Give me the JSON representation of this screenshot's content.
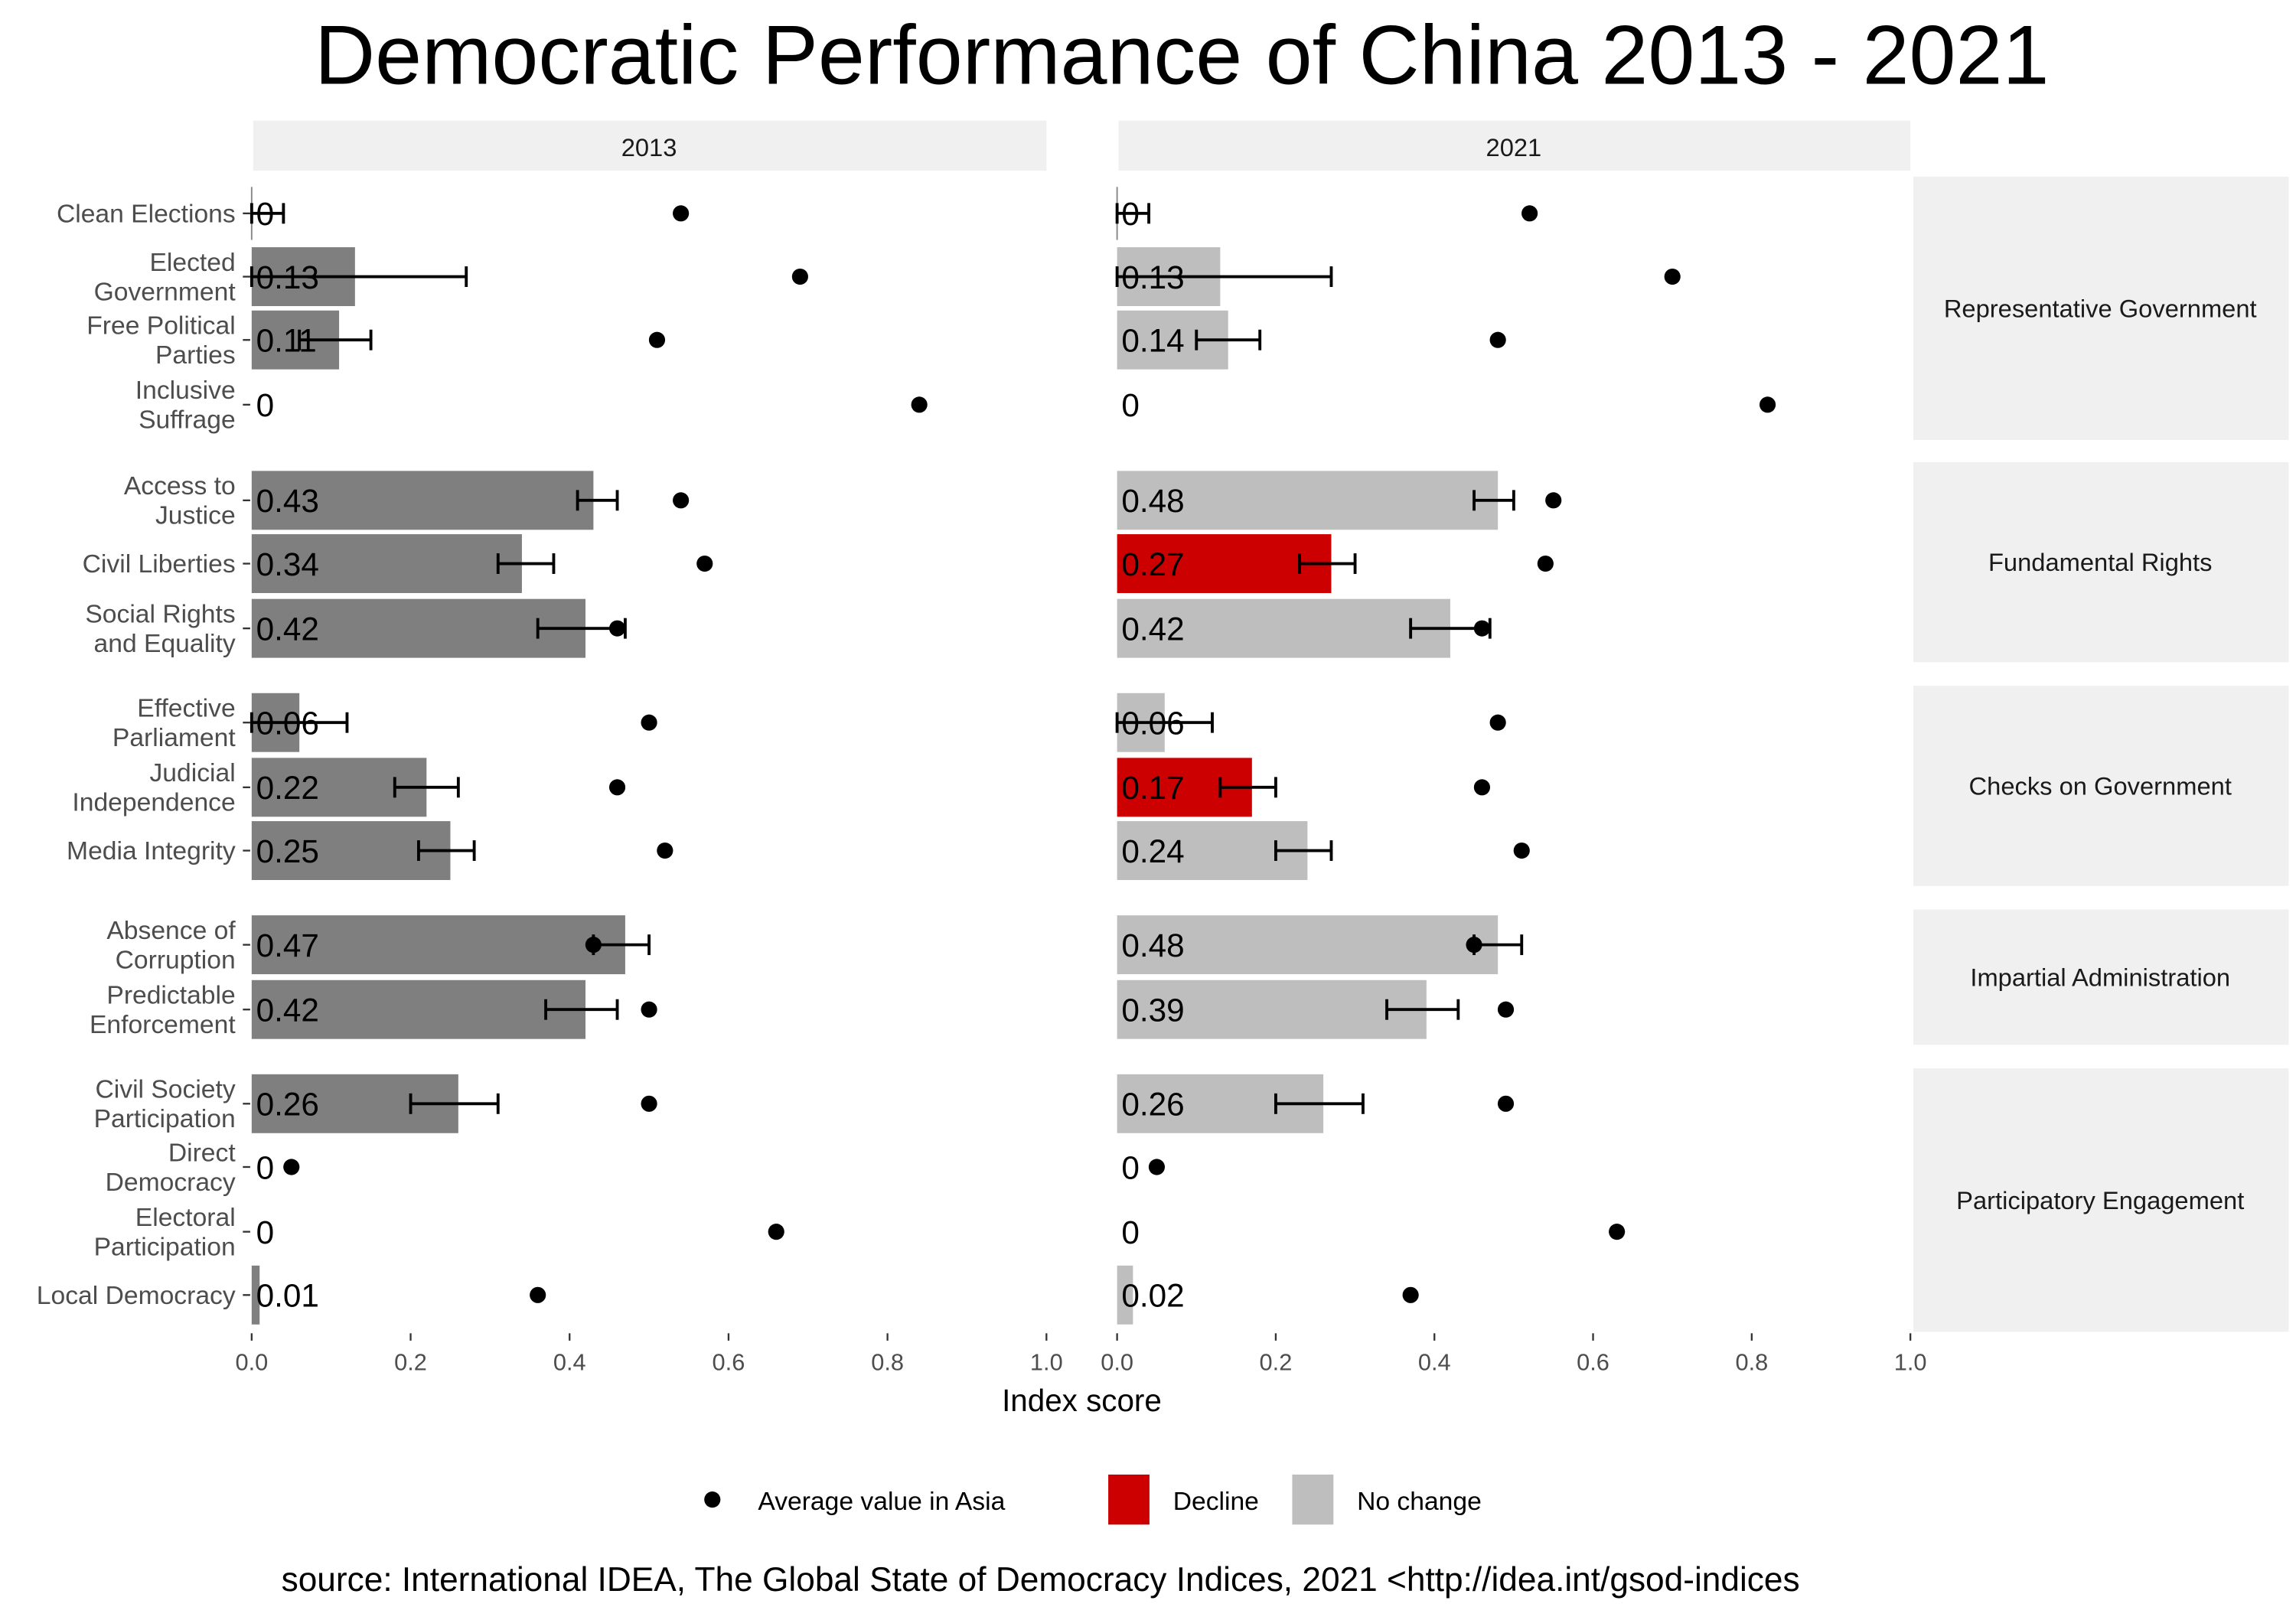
{
  "chart_data": {
    "type": "bar",
    "title": "Democratic Performance of China 2013 - 2021",
    "xlabel": "Index score",
    "ylabel": "",
    "xlim": [
      0,
      1.0
    ],
    "xticks": [
      "0.0",
      "0.2",
      "0.4",
      "0.6",
      "0.8",
      "1.0"
    ],
    "grid": false,
    "source": "source: International IDEA, The Global State of Democracy Indices, 2021 <http://idea.int/gsod-indices",
    "legend": {
      "placement": "bottom",
      "entries": [
        {
          "label": "Average value in Asia",
          "kind": "point",
          "color": "#000000"
        },
        {
          "label": "Decline",
          "kind": "fill",
          "color": "#cc0000"
        },
        {
          "label": "No change",
          "kind": "fill",
          "color": "#bebebe"
        }
      ]
    },
    "groups": [
      {
        "name": "Representative Government",
        "categories": [
          0,
          1,
          2,
          3
        ]
      },
      {
        "name": "Fundamental Rights",
        "categories": [
          4,
          5,
          6
        ]
      },
      {
        "name": "Checks on Government",
        "categories": [
          7,
          8,
          9
        ]
      },
      {
        "name": "Impartial Administration",
        "categories": [
          10,
          11
        ]
      },
      {
        "name": "Participatory Engagement",
        "categories": [
          12,
          13,
          14,
          15
        ]
      }
    ],
    "categories": [
      [
        "Clean Elections"
      ],
      [
        "Elected",
        "Government"
      ],
      [
        "Free Political",
        "Parties"
      ],
      [
        "Inclusive",
        "Suffrage"
      ],
      [
        "Access to",
        "Justice"
      ],
      [
        "Civil Liberties"
      ],
      [
        "Social Rights",
        "and Equality"
      ],
      [
        "Effective",
        "Parliament"
      ],
      [
        "Judicial",
        "Independence"
      ],
      [
        "Media Integrity"
      ],
      [
        "Absence of",
        "Corruption"
      ],
      [
        "Predictable",
        "Enforcement"
      ],
      [
        "Civil Society",
        "Participation"
      ],
      [
        "Direct",
        "Democracy"
      ],
      [
        "Electoral",
        "Participation"
      ],
      [
        "Local Democracy"
      ]
    ],
    "panels": [
      {
        "year": "2013",
        "bar_color": "#7f7f7f",
        "values": [
          0,
          0.13,
          0.11,
          0,
          0.43,
          0.34,
          0.42,
          0.06,
          0.22,
          0.25,
          0.47,
          0.42,
          0.26,
          0,
          0,
          0.01
        ],
        "labels": [
          "0",
          "0.13",
          "0.11",
          "0",
          "0.43",
          "0.34",
          "0.42",
          "0.06",
          "0.22",
          "0.25",
          "0.47",
          "0.42",
          "0.26",
          "0",
          "0",
          "0.01"
        ],
        "status": [
          "none",
          "none",
          "none",
          "none",
          "none",
          "none",
          "none",
          "none",
          "none",
          "none",
          "none",
          "none",
          "none",
          "none",
          "none",
          "none"
        ],
        "error_low": [
          0,
          0,
          0.06,
          null,
          0.41,
          0.31,
          0.36,
          0,
          0.18,
          0.21,
          0.43,
          0.37,
          0.2,
          null,
          null,
          null
        ],
        "error_high": [
          0.04,
          0.27,
          0.15,
          null,
          0.46,
          0.38,
          0.47,
          0.12,
          0.26,
          0.28,
          0.5,
          0.46,
          0.31,
          null,
          null,
          null
        ],
        "asia_average": [
          0.54,
          0.69,
          0.51,
          0.84,
          0.54,
          0.57,
          0.46,
          0.5,
          0.46,
          0.52,
          0.43,
          0.5,
          0.5,
          0.05,
          0.66,
          0.36
        ]
      },
      {
        "year": "2021",
        "bar_color": "#bebebe",
        "values": [
          0,
          0.13,
          0.14,
          0,
          0.48,
          0.27,
          0.42,
          0.06,
          0.17,
          0.24,
          0.48,
          0.39,
          0.26,
          0,
          0,
          0.02
        ],
        "labels": [
          "0",
          "0.13",
          "0.14",
          "0",
          "0.48",
          "0.27",
          "0.42",
          "0.06",
          "0.17",
          "0.24",
          "0.48",
          "0.39",
          "0.26",
          "0",
          "0",
          "0.02"
        ],
        "status": [
          "No change",
          "No change",
          "No change",
          "No change",
          "No change",
          "Decline",
          "No change",
          "No change",
          "Decline",
          "No change",
          "No change",
          "No change",
          "No change",
          "No change",
          "No change",
          "No change"
        ],
        "error_low": [
          0,
          0,
          0.1,
          null,
          0.45,
          0.23,
          0.37,
          0,
          0.13,
          0.2,
          0.45,
          0.34,
          0.2,
          null,
          null,
          null
        ],
        "error_high": [
          0.04,
          0.27,
          0.18,
          null,
          0.5,
          0.3,
          0.47,
          0.12,
          0.2,
          0.27,
          0.51,
          0.43,
          0.31,
          null,
          null,
          null
        ],
        "asia_average": [
          0.52,
          0.7,
          0.48,
          0.82,
          0.55,
          0.54,
          0.46,
          0.48,
          0.46,
          0.51,
          0.45,
          0.49,
          0.49,
          0.05,
          0.63,
          0.37
        ]
      }
    ],
    "colors": {
      "decline": "#cc0000",
      "no_change": "#bebebe",
      "bar_2013": "#7f7f7f"
    }
  }
}
